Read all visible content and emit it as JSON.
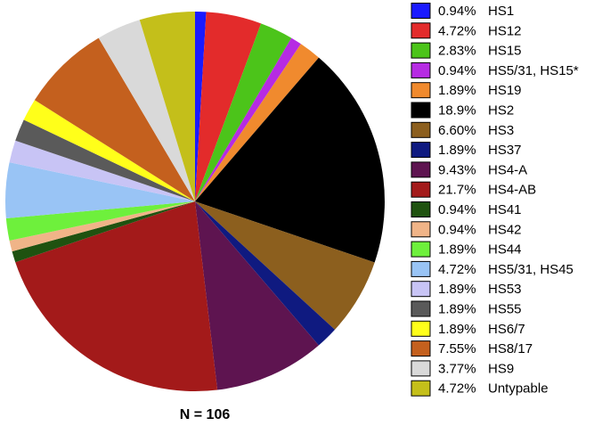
{
  "chart_data": {
    "type": "pie",
    "categories": [
      "HS1",
      "HS12",
      "HS15",
      "HS5/31, HS15*",
      "HS19",
      "HS2",
      "HS3",
      "HS37",
      "HS4-A",
      "HS4-AB",
      "HS41",
      "HS42",
      "HS44",
      "HS5/31, HS45",
      "HS53",
      "HS55",
      "HS6/7",
      "HS8/17",
      "HS9",
      "Untypable"
    ],
    "values": [
      0.94,
      4.72,
      2.83,
      0.94,
      1.89,
      18.9,
      6.6,
      1.89,
      9.43,
      21.7,
      0.94,
      0.94,
      1.89,
      4.72,
      1.89,
      1.89,
      1.89,
      7.55,
      3.77,
      4.72
    ],
    "value_labels": [
      "0.94%",
      "4.72%",
      "2.83%",
      "0.94%",
      "1.89%",
      "18.9%",
      "6.60%",
      "1.89%",
      "9.43%",
      "21.7%",
      "0.94%",
      "0.94%",
      "1.89%",
      "4.72%",
      "1.89%",
      "1.89%",
      "1.89%",
      "7.55%",
      "3.77%",
      "4.72%"
    ],
    "colors": [
      "#1a1aff",
      "#e32b2b",
      "#4cc41a",
      "#b62be3",
      "#f08a2e",
      "#000000",
      "#8c5f1e",
      "#0f1a80",
      "#5e1450",
      "#a31a1a",
      "#1f5210",
      "#f0b488",
      "#6ef03c",
      "#99c4f5",
      "#c8c4f5",
      "#5a5a5a",
      "#ffff1a",
      "#c4601e",
      "#d9d9d9",
      "#c4bf1a"
    ],
    "annotation": "N = 106",
    "legend": "right"
  }
}
